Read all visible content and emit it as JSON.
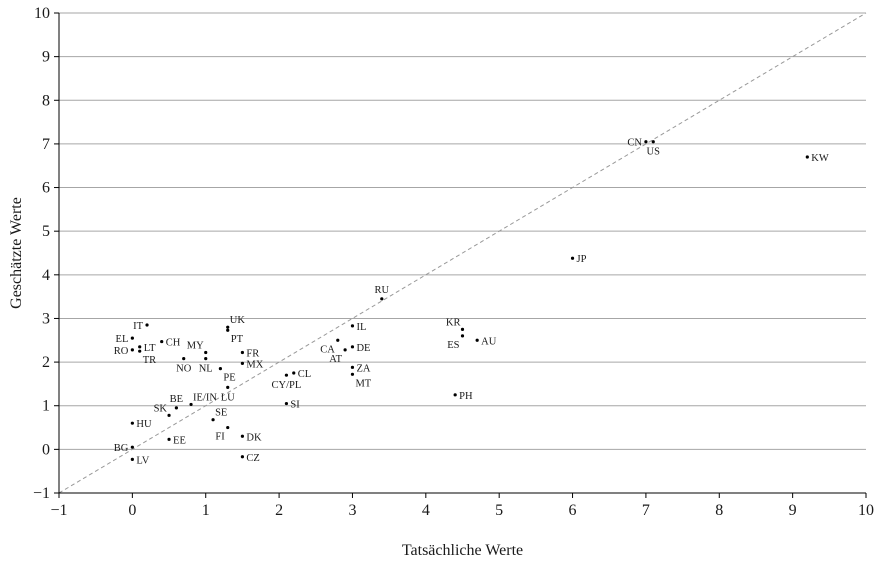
{
  "chart_data": {
    "type": "scatter",
    "title": "",
    "xlabel": "Tatsächliche Werte",
    "ylabel": "Geschätzte Werte",
    "xlim": [
      -1,
      10
    ],
    "ylim": [
      -1,
      10
    ],
    "xticks": [
      "−1",
      "0",
      "1",
      "2",
      "3",
      "4",
      "5",
      "6",
      "7",
      "8",
      "9",
      "10"
    ],
    "yticks": [
      "−1",
      "0",
      "1",
      "2",
      "3",
      "4",
      "5",
      "6",
      "7",
      "8",
      "9",
      "10"
    ],
    "grid": "horizontal",
    "reference_line": "y = x",
    "colors": {
      "axis": "#000000",
      "grid": "#a6a6a6",
      "reference": "#999999",
      "point": "#000000"
    },
    "points": [
      {
        "label": "CN",
        "x": 7.0,
        "y": 7.05,
        "pos": "w"
      },
      {
        "label": "US",
        "x": 7.1,
        "y": 7.05,
        "pos": "s"
      },
      {
        "label": "KW",
        "x": 9.2,
        "y": 6.7,
        "pos": "e"
      },
      {
        "label": "JP",
        "x": 6.0,
        "y": 4.38,
        "pos": "e"
      },
      {
        "label": "RU",
        "x": 3.4,
        "y": 3.45,
        "pos": "n"
      },
      {
        "label": "KR",
        "x": 4.5,
        "y": 2.75,
        "pos": "nw"
      },
      {
        "label": "ES",
        "x": 4.5,
        "y": 2.6,
        "pos": "sw"
      },
      {
        "label": "AU",
        "x": 4.7,
        "y": 2.5,
        "pos": "e"
      },
      {
        "label": "PH",
        "x": 4.4,
        "y": 1.25,
        "pos": "e"
      },
      {
        "label": "IL",
        "x": 3.0,
        "y": 2.83,
        "pos": "e"
      },
      {
        "label": "CA",
        "x": 2.8,
        "y": 2.5,
        "pos": "sw"
      },
      {
        "label": "DE",
        "x": 3.0,
        "y": 2.35,
        "pos": "e"
      },
      {
        "label": "AT",
        "x": 2.9,
        "y": 2.28,
        "pos": "sw"
      },
      {
        "label": "ZA",
        "x": 3.0,
        "y": 1.88,
        "pos": "e"
      },
      {
        "label": "MT",
        "x": 3.0,
        "y": 1.72,
        "pos": "se"
      },
      {
        "label": "CL",
        "x": 2.2,
        "y": 1.75,
        "pos": "e"
      },
      {
        "label": "CY/PL",
        "x": 2.1,
        "y": 1.7,
        "pos": "s"
      },
      {
        "label": "SI",
        "x": 2.1,
        "y": 1.05,
        "pos": "e"
      },
      {
        "label": "UK",
        "x": 1.3,
        "y": 2.8,
        "pos": "ne"
      },
      {
        "label": "PT",
        "x": 1.3,
        "y": 2.73,
        "pos": "se"
      },
      {
        "label": "IT",
        "x": 0.2,
        "y": 2.85,
        "pos": "w"
      },
      {
        "label": "EL",
        "x": 0.0,
        "y": 2.55,
        "pos": "w"
      },
      {
        "label": "CH",
        "x": 0.4,
        "y": 2.47,
        "pos": "e"
      },
      {
        "label": "LT",
        "x": 0.1,
        "y": 2.35,
        "pos": "e"
      },
      {
        "label": "RO",
        "x": 0.0,
        "y": 2.28,
        "pos": "w"
      },
      {
        "label": "TR",
        "x": 0.1,
        "y": 2.25,
        "pos": "se"
      },
      {
        "label": "MY",
        "x": 1.0,
        "y": 2.22,
        "pos": "nw"
      },
      {
        "label": "FR",
        "x": 1.5,
        "y": 2.22,
        "pos": "e"
      },
      {
        "label": "NO",
        "x": 0.7,
        "y": 2.08,
        "pos": "s"
      },
      {
        "label": "NL",
        "x": 1.0,
        "y": 2.08,
        "pos": "s"
      },
      {
        "label": "MX",
        "x": 1.5,
        "y": 1.97,
        "pos": "e"
      },
      {
        "label": "PE",
        "x": 1.2,
        "y": 1.85,
        "pos": "se"
      },
      {
        "label": "LU",
        "x": 1.3,
        "y": 1.42,
        "pos": "s"
      },
      {
        "label": "BE",
        "x": 0.6,
        "y": 0.95,
        "pos": "n"
      },
      {
        "label": "IE/IN",
        "x": 0.8,
        "y": 1.03,
        "pos": "ne"
      },
      {
        "label": "SK",
        "x": 0.5,
        "y": 0.78,
        "pos": "nw"
      },
      {
        "label": "HU",
        "x": 0.0,
        "y": 0.6,
        "pos": "e"
      },
      {
        "label": "SE",
        "x": 1.1,
        "y": 0.68,
        "pos": "ne"
      },
      {
        "label": "FI",
        "x": 1.3,
        "y": 0.5,
        "pos": "sw"
      },
      {
        "label": "DK",
        "x": 1.5,
        "y": 0.3,
        "pos": "e"
      },
      {
        "label": "EE",
        "x": 0.5,
        "y": 0.23,
        "pos": "e"
      },
      {
        "label": "BG",
        "x": 0.0,
        "y": 0.05,
        "pos": "w"
      },
      {
        "label": "LV",
        "x": 0.0,
        "y": -0.23,
        "pos": "e"
      },
      {
        "label": "CZ",
        "x": 1.5,
        "y": -0.17,
        "pos": "e"
      }
    ]
  }
}
